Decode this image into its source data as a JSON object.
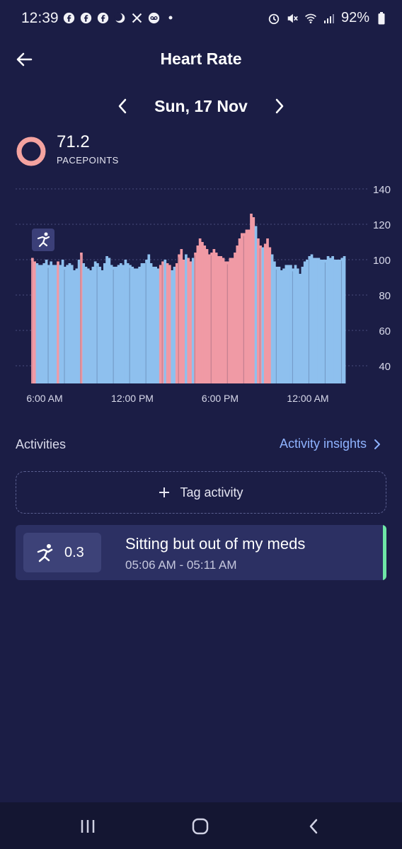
{
  "status_bar": {
    "time": "12:39",
    "notification_icons": [
      "facebook-icon",
      "facebook-icon",
      "facebook-icon",
      "moon-icon",
      "x-icon",
      "voicemail-icon",
      "dot-icon"
    ],
    "system_icons": [
      "alarm-icon",
      "mute-icon",
      "wifi-icon",
      "signal-icon"
    ],
    "battery": "92%"
  },
  "header": {
    "title": "Heart Rate",
    "date": "Sun, 17 Nov"
  },
  "pacepoints": {
    "value": "71.2",
    "label": "PACEPOINTS",
    "ring_color": "#f4a3a0"
  },
  "chart_data": {
    "type": "bar",
    "y_ticks": [
      "140",
      "120",
      "100",
      "80",
      "60",
      "40"
    ],
    "x_ticks": [
      "6:00 AM",
      "12:00 PM",
      "6:00 PM",
      "12:00 AM"
    ],
    "ylim": [
      30,
      140
    ],
    "colors": {
      "normal": "#8ec0ee",
      "elevated": "#f09aa5"
    },
    "series": [
      {
        "values": [
          101,
          99,
          98,
          97,
          97,
          98,
          100,
          97,
          99,
          97,
          97,
          99,
          97,
          100,
          96,
          97,
          98,
          97,
          94,
          95,
          100,
          104,
          98,
          96,
          95,
          94,
          96,
          99,
          98,
          96,
          94,
          98,
          102,
          101,
          97,
          96,
          96,
          97,
          98,
          97,
          100,
          98,
          97,
          96,
          95,
          95,
          96,
          98,
          98,
          100,
          103,
          98,
          96,
          96,
          95,
          97,
          99,
          100,
          98,
          97,
          94,
          96,
          98,
          103,
          106,
          100,
          103,
          101,
          99,
          101,
          104,
          108,
          112,
          110,
          108,
          106,
          103,
          104,
          106,
          104,
          102,
          102,
          101,
          99,
          99,
          101,
          101,
          104,
          108,
          112,
          115,
          115,
          117,
          117,
          126,
          124,
          119,
          112,
          108,
          107,
          109,
          112,
          107,
          103,
          99,
          96,
          96,
          94,
          95,
          97,
          97,
          97,
          95,
          97,
          95,
          92,
          96,
          99,
          100,
          102,
          103,
          101,
          101,
          101,
          100,
          100,
          100,
          102,
          101,
          102,
          100,
          100,
          100,
          101,
          102
        ]
      }
    ],
    "elevated_ranges": [
      [
        0,
        1
      ],
      [
        11,
        11
      ],
      [
        21,
        21
      ],
      [
        55,
        56
      ],
      [
        58,
        59
      ],
      [
        62,
        65
      ],
      [
        67,
        68
      ],
      [
        70,
        95
      ],
      [
        97,
        98
      ],
      [
        100,
        102
      ]
    ]
  },
  "activities": {
    "title": "Activities",
    "insights_label": "Activity insights",
    "tag_label": "Tag activity",
    "items": [
      {
        "score": "0.3",
        "name": "Sitting but out of my meds",
        "time": "05:06 AM - 05:11 AM",
        "accent": "#6ee7a6"
      }
    ]
  },
  "nav": {
    "buttons": [
      "recent-apps-icon",
      "home-icon",
      "back-icon"
    ]
  }
}
